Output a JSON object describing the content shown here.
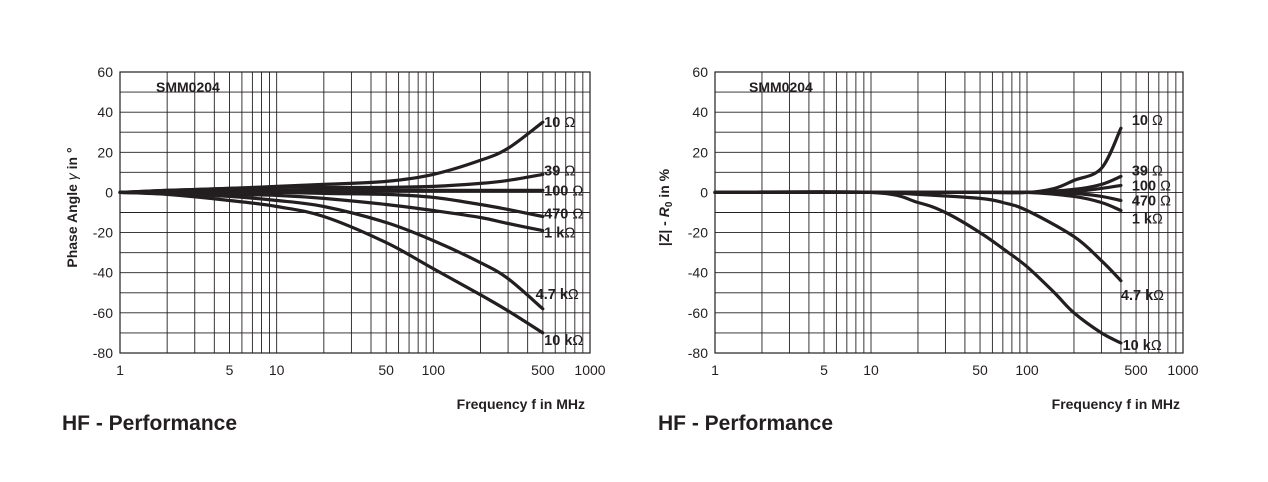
{
  "colors": {
    "ink": "#231f20",
    "grid": "#231f20",
    "background": "#ffffff"
  },
  "chart_data": [
    {
      "type": "line",
      "title": "HF - Performance",
      "label": "SMM0204",
      "xlabel": "Frequency f in MHz",
      "ylabel_parts": [
        "Phase Angle ",
        "γ",
        " in °"
      ],
      "xscale": "log",
      "xlim": [
        1,
        1000
      ],
      "ylim": [
        -80,
        60
      ],
      "grid": true,
      "x_ticks": [
        {
          "value": 1,
          "label": "1"
        },
        {
          "value": 5,
          "label": "5"
        },
        {
          "value": 10,
          "label": "10"
        },
        {
          "value": 50,
          "label": "50"
        },
        {
          "value": 100,
          "label": "100"
        },
        {
          "value": 500,
          "label": "500"
        },
        {
          "value": 1000,
          "label": "1000"
        }
      ],
      "y_ticks": [
        {
          "value": 60,
          "label": "60"
        },
        {
          "value": 40,
          "label": "40"
        },
        {
          "value": 20,
          "label": "20"
        },
        {
          "value": 0,
          "label": "0"
        },
        {
          "value": -20,
          "label": "-20"
        },
        {
          "value": -40,
          "label": "-40"
        },
        {
          "value": -60,
          "label": "-60"
        },
        {
          "value": -80,
          "label": "-80"
        }
      ],
      "series": [
        {
          "name": "10 Ω",
          "label_parts": [
            "10 ",
            "Ω"
          ],
          "label_at": [
            510,
            35
          ],
          "x": [
            1,
            2,
            5,
            10,
            20,
            50,
            100,
            200,
            300,
            500
          ],
          "y": [
            0,
            1,
            2,
            3,
            4,
            5.5,
            9,
            16,
            22,
            35
          ]
        },
        {
          "name": "39 Ω",
          "label_parts": [
            "39 ",
            "Ω"
          ],
          "label_at": [
            510,
            11
          ],
          "x": [
            1,
            2,
            5,
            10,
            20,
            50,
            100,
            200,
            300,
            500
          ],
          "y": [
            0,
            1,
            2,
            2.5,
            2.5,
            2.5,
            3,
            4.5,
            6,
            9
          ]
        },
        {
          "name": "100 Ω",
          "label_parts": [
            "100 ",
            "Ω"
          ],
          "label_at": [
            510,
            1
          ],
          "x": [
            1,
            2,
            5,
            10,
            20,
            50,
            100,
            200,
            300,
            500
          ],
          "y": [
            0,
            0.5,
            1,
            1,
            1,
            1,
            1,
            1,
            1,
            1
          ]
        },
        {
          "name": "470 Ω",
          "label_parts": [
            "470 ",
            "Ω"
          ],
          "label_at": [
            510,
            -10.5
          ],
          "x": [
            1,
            2,
            5,
            10,
            20,
            50,
            100,
            200,
            300,
            500
          ],
          "y": [
            0,
            0,
            0,
            0,
            -0.5,
            -1,
            -2.5,
            -6,
            -8.5,
            -12
          ]
        },
        {
          "name": "1 kΩ",
          "label_parts": [
            "1 k",
            "Ω"
          ],
          "label_at": [
            510,
            -20
          ],
          "x": [
            1,
            2,
            5,
            10,
            20,
            50,
            100,
            200,
            300,
            500
          ],
          "y": [
            0,
            -0.5,
            -1,
            -1.5,
            -3,
            -6,
            -9,
            -12.5,
            -15.5,
            -19
          ]
        },
        {
          "name": "4.7 kΩ",
          "label_parts": [
            "4.7 k",
            "Ω"
          ],
          "label_at": [
            450,
            -50.5
          ],
          "x": [
            1,
            2,
            5,
            10,
            20,
            50,
            100,
            200,
            300,
            500
          ],
          "y": [
            0,
            -0.5,
            -2,
            -4,
            -7,
            -15,
            -24,
            -35,
            -43,
            -58
          ]
        },
        {
          "name": "10 kΩ",
          "label_parts": [
            "10 k",
            "Ω"
          ],
          "label_at": [
            510,
            -73.5
          ],
          "x": [
            1,
            2,
            5,
            10,
            20,
            50,
            100,
            200,
            300,
            500
          ],
          "y": [
            0,
            -1,
            -4,
            -7,
            -12,
            -25,
            -38,
            -51,
            -59,
            -70
          ]
        }
      ]
    },
    {
      "type": "line",
      "title": "HF - Performance",
      "label": "SMM0204",
      "xlabel": "Frequency f in MHz",
      "ylabel_parts": [
        "|Z| - ",
        "R",
        "0",
        " in %"
      ],
      "xscale": "log",
      "xlim": [
        1,
        1000
      ],
      "ylim": [
        -80,
        60
      ],
      "grid": true,
      "x_ticks": [
        {
          "value": 1,
          "label": "1"
        },
        {
          "value": 5,
          "label": "5"
        },
        {
          "value": 10,
          "label": "10"
        },
        {
          "value": 50,
          "label": "50"
        },
        {
          "value": 100,
          "label": "100"
        },
        {
          "value": 500,
          "label": "500"
        },
        {
          "value": 1000,
          "label": "1000"
        }
      ],
      "y_ticks": [
        {
          "value": 60,
          "label": "60"
        },
        {
          "value": 40,
          "label": "40"
        },
        {
          "value": 20,
          "label": "20"
        },
        {
          "value": 0,
          "label": "0"
        },
        {
          "value": -20,
          "label": "-20"
        },
        {
          "value": -40,
          "label": "-40"
        },
        {
          "value": -60,
          "label": "-60"
        },
        {
          "value": -80,
          "label": "-80"
        }
      ],
      "series": [
        {
          "name": "10 Ω",
          "label_parts": [
            "10 ",
            "Ω"
          ],
          "label_at": [
            470,
            36
          ],
          "x": [
            1,
            10,
            50,
            100,
            150,
            200,
            300,
            400
          ],
          "y": [
            0,
            0,
            0,
            0,
            2,
            6,
            12,
            32
          ]
        },
        {
          "name": "39 Ω",
          "label_parts": [
            "39 ",
            "Ω"
          ],
          "label_at": [
            470,
            11
          ],
          "x": [
            1,
            10,
            50,
            100,
            200,
            300,
            400
          ],
          "y": [
            0,
            0,
            0,
            0,
            1.5,
            4,
            8
          ]
        },
        {
          "name": "100 Ω",
          "label_parts": [
            "100 ",
            "Ω"
          ],
          "label_at": [
            470,
            3.5
          ],
          "x": [
            1,
            10,
            50,
            100,
            200,
            300,
            400
          ],
          "y": [
            0,
            0,
            0,
            0,
            0.5,
            2,
            3.5
          ]
        },
        {
          "name": "470 Ω",
          "label_parts": [
            "470 ",
            "Ω"
          ],
          "label_at": [
            470,
            -4
          ],
          "x": [
            1,
            10,
            50,
            100,
            200,
            300,
            400
          ],
          "y": [
            0,
            0,
            0,
            0,
            -0.5,
            -2,
            -4
          ]
        },
        {
          "name": "1 kΩ",
          "label_parts": [
            "1 k",
            "Ω"
          ],
          "label_at": [
            470,
            -13
          ],
          "x": [
            1,
            10,
            50,
            100,
            200,
            300,
            400
          ],
          "y": [
            0,
            0,
            0,
            0,
            -2,
            -5,
            -9
          ]
        },
        {
          "name": "4.7 kΩ",
          "label_parts": [
            "4.7 k",
            "Ω"
          ],
          "label_at": [
            400,
            -51
          ],
          "x": [
            1,
            10,
            20,
            50,
            70,
            100,
            200,
            300,
            400
          ],
          "y": [
            0,
            0,
            -1,
            -3,
            -5,
            -9,
            -22,
            -34,
            -44
          ]
        },
        {
          "name": "10 kΩ",
          "label_parts": [
            "10 k",
            "Ω"
          ],
          "label_at": [
            410,
            -76
          ],
          "x": [
            1,
            10,
            20,
            30,
            50,
            70,
            100,
            150,
            200,
            300,
            400
          ],
          "y": [
            0,
            0,
            -5,
            -10,
            -20,
            -28,
            -37,
            -50,
            -60,
            -70,
            -75
          ]
        }
      ]
    }
  ]
}
